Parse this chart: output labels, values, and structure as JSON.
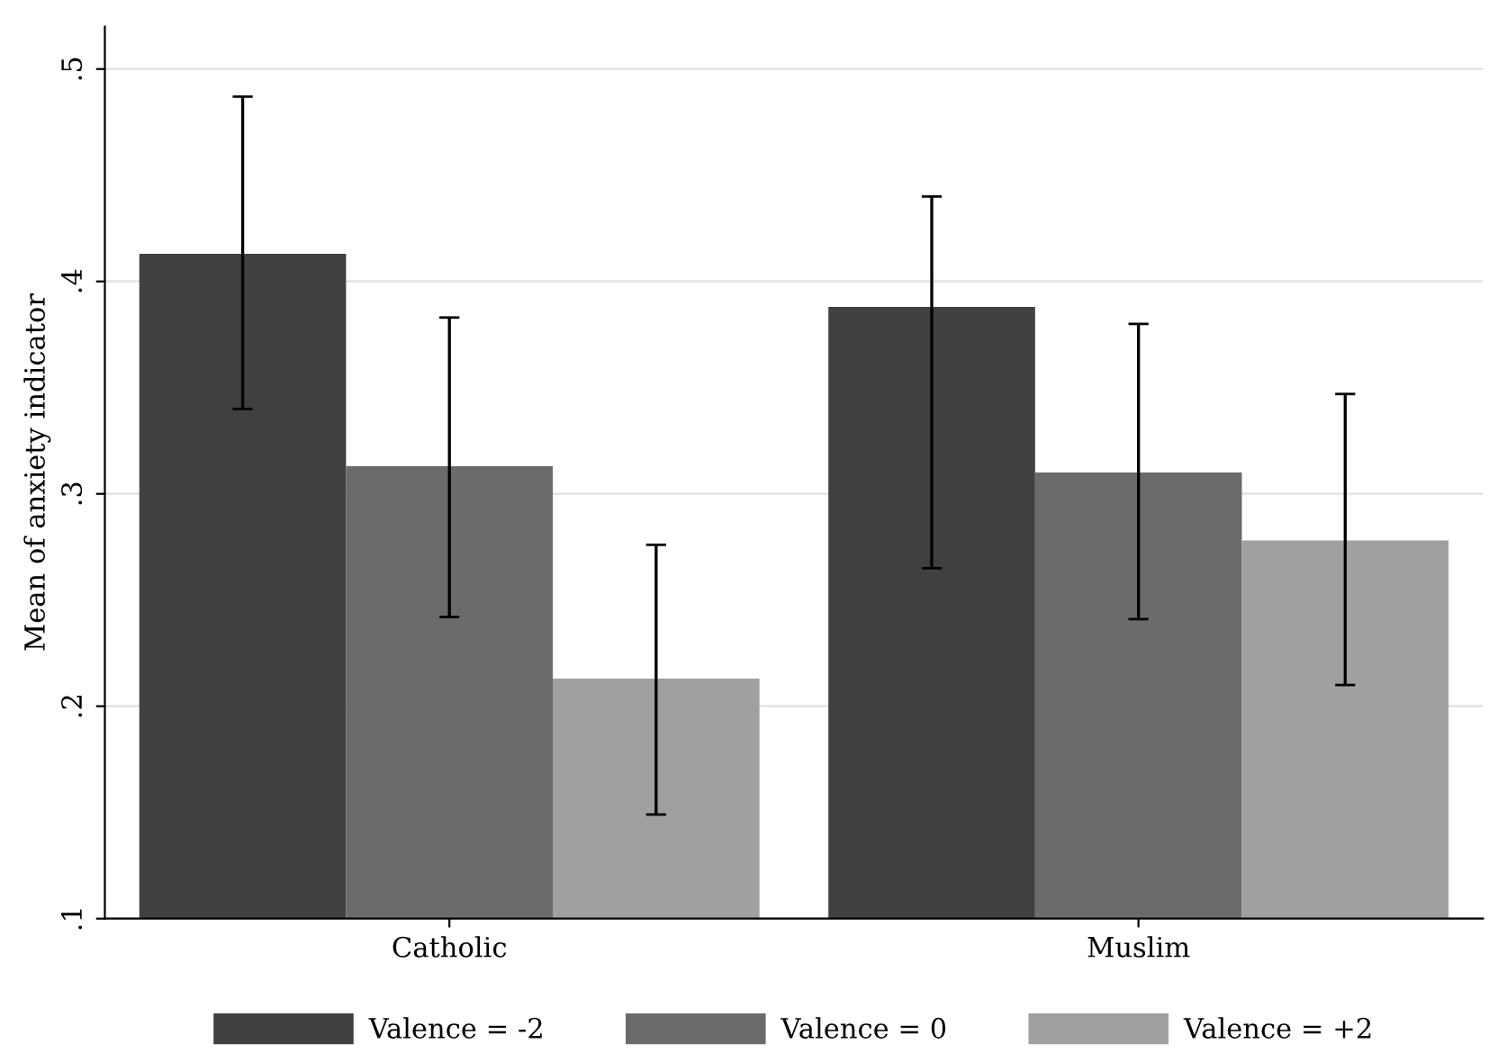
{
  "chart_data": {
    "type": "bar",
    "ylabel": "Mean of anxiety indicator",
    "categories": [
      "Catholic",
      "Muslim"
    ],
    "series": [
      {
        "name": "Valence = -2",
        "color": "#404040",
        "values": [
          0.413,
          0.388
        ],
        "errors": [
          [
            0.34,
            0.487
          ],
          [
            0.265,
            0.44
          ]
        ]
      },
      {
        "name": "Valence = 0",
        "color": "#6b6b6b",
        "values": [
          0.313,
          0.31
        ],
        "errors": [
          [
            0.242,
            0.383
          ],
          [
            0.241,
            0.38
          ]
        ]
      },
      {
        "name": "Valence = +2",
        "color": "#a0a0a0",
        "values": [
          0.213,
          0.278
        ],
        "errors": [
          [
            0.149,
            0.276
          ],
          [
            0.21,
            0.347
          ]
        ]
      }
    ],
    "ylim": [
      0.1,
      0.52
    ],
    "yticks": [
      {
        "value": 0.1,
        "label": ".1"
      },
      {
        "value": 0.2,
        "label": ".2"
      },
      {
        "value": 0.3,
        "label": ".3"
      },
      {
        "value": 0.4,
        "label": ".4"
      },
      {
        "value": 0.5,
        "label": ".5"
      }
    ],
    "grid": "y",
    "legend": "bottom"
  }
}
